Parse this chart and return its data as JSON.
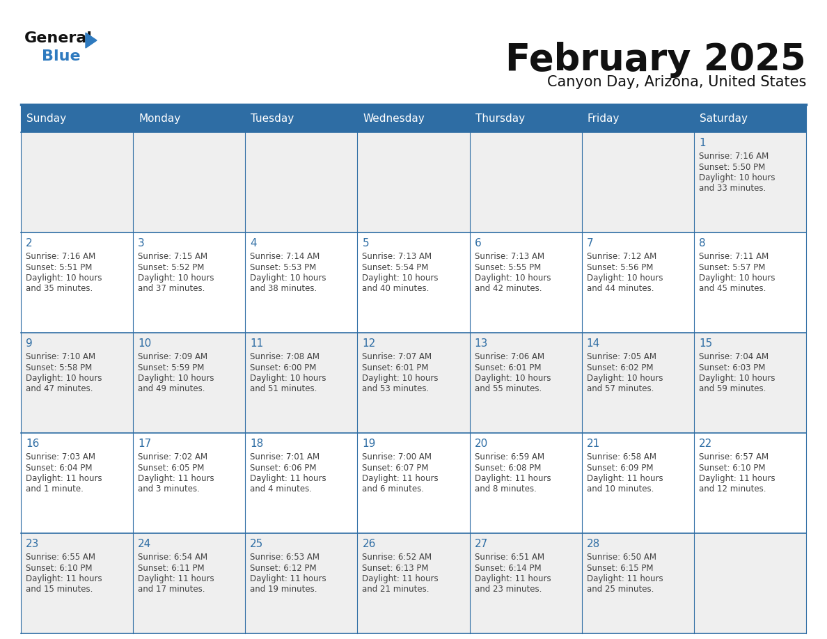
{
  "title": "February 2025",
  "subtitle": "Canyon Day, Arizona, United States",
  "days_of_week": [
    "Sunday",
    "Monday",
    "Tuesday",
    "Wednesday",
    "Thursday",
    "Friday",
    "Saturday"
  ],
  "header_bg": "#2E6DA4",
  "header_text": "#FFFFFF",
  "cell_bg_light": "#EFEFEF",
  "cell_bg_white": "#FFFFFF",
  "grid_line_color": "#2E6DA4",
  "day_number_color": "#2E6DA4",
  "info_text_color": "#404040",
  "title_color": "#111111",
  "subtitle_color": "#111111",
  "logo_general_color": "#111111",
  "logo_blue_color": "#2E7ABF",
  "fig_width": 11.88,
  "fig_height": 9.18,
  "dpi": 100,
  "calendar": [
    [
      null,
      null,
      null,
      null,
      null,
      null,
      {
        "day": 1,
        "sunrise": "7:16 AM",
        "sunset": "5:50 PM",
        "daylight": "10 hours\nand 33 minutes."
      }
    ],
    [
      {
        "day": 2,
        "sunrise": "7:16 AM",
        "sunset": "5:51 PM",
        "daylight": "10 hours\nand 35 minutes."
      },
      {
        "day": 3,
        "sunrise": "7:15 AM",
        "sunset": "5:52 PM",
        "daylight": "10 hours\nand 37 minutes."
      },
      {
        "day": 4,
        "sunrise": "7:14 AM",
        "sunset": "5:53 PM",
        "daylight": "10 hours\nand 38 minutes."
      },
      {
        "day": 5,
        "sunrise": "7:13 AM",
        "sunset": "5:54 PM",
        "daylight": "10 hours\nand 40 minutes."
      },
      {
        "day": 6,
        "sunrise": "7:13 AM",
        "sunset": "5:55 PM",
        "daylight": "10 hours\nand 42 minutes."
      },
      {
        "day": 7,
        "sunrise": "7:12 AM",
        "sunset": "5:56 PM",
        "daylight": "10 hours\nand 44 minutes."
      },
      {
        "day": 8,
        "sunrise": "7:11 AM",
        "sunset": "5:57 PM",
        "daylight": "10 hours\nand 45 minutes."
      }
    ],
    [
      {
        "day": 9,
        "sunrise": "7:10 AM",
        "sunset": "5:58 PM",
        "daylight": "10 hours\nand 47 minutes."
      },
      {
        "day": 10,
        "sunrise": "7:09 AM",
        "sunset": "5:59 PM",
        "daylight": "10 hours\nand 49 minutes."
      },
      {
        "day": 11,
        "sunrise": "7:08 AM",
        "sunset": "6:00 PM",
        "daylight": "10 hours\nand 51 minutes."
      },
      {
        "day": 12,
        "sunrise": "7:07 AM",
        "sunset": "6:01 PM",
        "daylight": "10 hours\nand 53 minutes."
      },
      {
        "day": 13,
        "sunrise": "7:06 AM",
        "sunset": "6:01 PM",
        "daylight": "10 hours\nand 55 minutes."
      },
      {
        "day": 14,
        "sunrise": "7:05 AM",
        "sunset": "6:02 PM",
        "daylight": "10 hours\nand 57 minutes."
      },
      {
        "day": 15,
        "sunrise": "7:04 AM",
        "sunset": "6:03 PM",
        "daylight": "10 hours\nand 59 minutes."
      }
    ],
    [
      {
        "day": 16,
        "sunrise": "7:03 AM",
        "sunset": "6:04 PM",
        "daylight": "11 hours\nand 1 minute."
      },
      {
        "day": 17,
        "sunrise": "7:02 AM",
        "sunset": "6:05 PM",
        "daylight": "11 hours\nand 3 minutes."
      },
      {
        "day": 18,
        "sunrise": "7:01 AM",
        "sunset": "6:06 PM",
        "daylight": "11 hours\nand 4 minutes."
      },
      {
        "day": 19,
        "sunrise": "7:00 AM",
        "sunset": "6:07 PM",
        "daylight": "11 hours\nand 6 minutes."
      },
      {
        "day": 20,
        "sunrise": "6:59 AM",
        "sunset": "6:08 PM",
        "daylight": "11 hours\nand 8 minutes."
      },
      {
        "day": 21,
        "sunrise": "6:58 AM",
        "sunset": "6:09 PM",
        "daylight": "11 hours\nand 10 minutes."
      },
      {
        "day": 22,
        "sunrise": "6:57 AM",
        "sunset": "6:10 PM",
        "daylight": "11 hours\nand 12 minutes."
      }
    ],
    [
      {
        "day": 23,
        "sunrise": "6:55 AM",
        "sunset": "6:10 PM",
        "daylight": "11 hours\nand 15 minutes."
      },
      {
        "day": 24,
        "sunrise": "6:54 AM",
        "sunset": "6:11 PM",
        "daylight": "11 hours\nand 17 minutes."
      },
      {
        "day": 25,
        "sunrise": "6:53 AM",
        "sunset": "6:12 PM",
        "daylight": "11 hours\nand 19 minutes."
      },
      {
        "day": 26,
        "sunrise": "6:52 AM",
        "sunset": "6:13 PM",
        "daylight": "11 hours\nand 21 minutes."
      },
      {
        "day": 27,
        "sunrise": "6:51 AM",
        "sunset": "6:14 PM",
        "daylight": "11 hours\nand 23 minutes."
      },
      {
        "day": 28,
        "sunrise": "6:50 AM",
        "sunset": "6:15 PM",
        "daylight": "11 hours\nand 25 minutes."
      },
      null
    ]
  ]
}
